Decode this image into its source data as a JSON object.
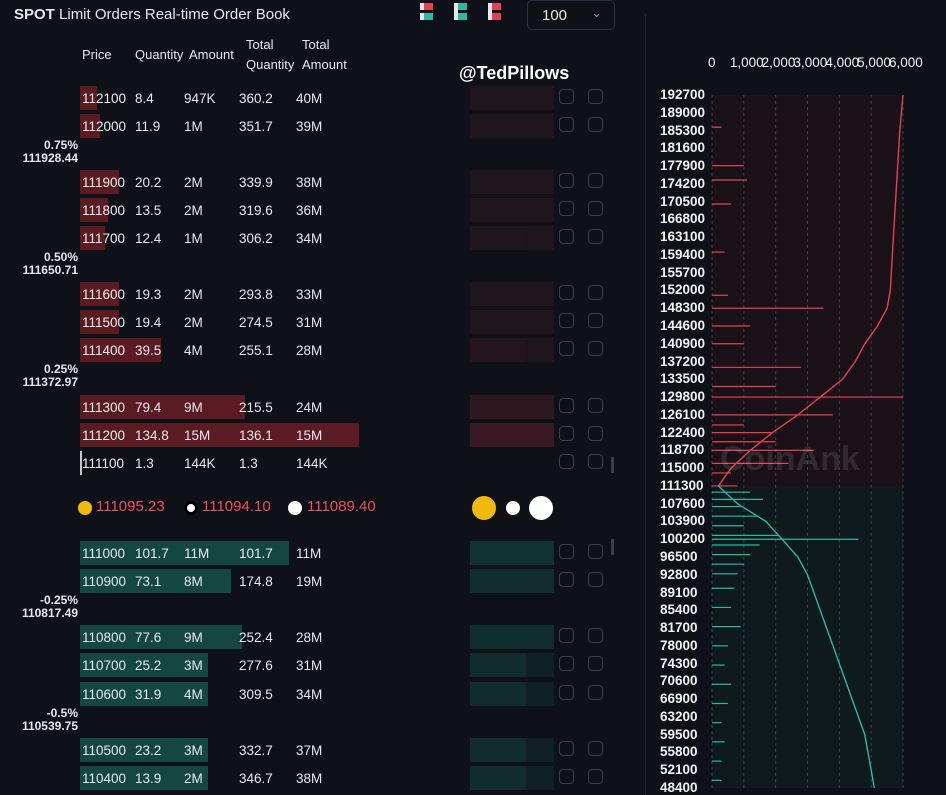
{
  "header": {
    "spot": "SPOT",
    "title": "Limit Orders Real-time Order Book",
    "view_icons": [
      "mixed-view-icon",
      "bids-view-icon",
      "asks-view-icon"
    ],
    "depth_select": "100",
    "columns": {
      "price": "Price",
      "quantity": "Quantity",
      "amount": "Amount",
      "total_qty_1": "Total",
      "total_qty_2": "Quantity",
      "total_amt_1": "Total",
      "total_amt_2": "Amount"
    }
  },
  "watermark": "@TedPillows",
  "chart_watermark": "CoinAnk",
  "colors": {
    "ask": "#5a1c22",
    "bid": "#14483f",
    "ask_line": "#e0454f",
    "bid_line": "#2fb7a2",
    "mid": "#ef4d5a"
  },
  "asks": [
    {
      "price": "112100",
      "qty": "8.4",
      "amount": "947K",
      "total_qty": "360.2",
      "total_amt": "40M",
      "depth": 0.06
    },
    {
      "price": "112000",
      "qty": "11.9",
      "amount": "1M",
      "total_qty": "351.7",
      "total_amt": "39M",
      "depth": 0.07
    },
    {
      "price": "111900",
      "qty": "20.2",
      "amount": "2M",
      "total_qty": "339.9",
      "total_amt": "38M",
      "depth": 0.14
    },
    {
      "price": "111800",
      "qty": "13.5",
      "amount": "2M",
      "total_qty": "319.6",
      "total_amt": "36M",
      "depth": 0.1
    },
    {
      "price": "111700",
      "qty": "12.4",
      "amount": "1M",
      "total_qty": "306.2",
      "total_amt": "34M",
      "depth": 0.09
    },
    {
      "price": "111600",
      "qty": "19.3",
      "amount": "2M",
      "total_qty": "293.8",
      "total_amt": "33M",
      "depth": 0.14
    },
    {
      "price": "111500",
      "qty": "19.4",
      "amount": "2M",
      "total_qty": "274.5",
      "total_amt": "31M",
      "depth": 0.14
    },
    {
      "price": "111400",
      "qty": "39.5",
      "amount": "4M",
      "total_qty": "255.1",
      "total_amt": "28M",
      "depth": 0.29
    },
    {
      "price": "111300",
      "qty": "79.4",
      "amount": "9M",
      "total_qty": "215.5",
      "total_amt": "24M",
      "depth": 0.59
    },
    {
      "price": "111200",
      "qty": "134.8",
      "amount": "15M",
      "total_qty": "136.1",
      "total_amt": "15M",
      "depth": 1.0
    },
    {
      "price": "111100",
      "qty": "1.3",
      "amount": "144K",
      "total_qty": "1.3",
      "total_amt": "144K",
      "depth": 0.0
    }
  ],
  "ask_separators": [
    {
      "pct": "0.75%",
      "price": "111928.44"
    },
    {
      "pct": "0.50%",
      "price": "111650.71"
    },
    {
      "pct": "0.25%",
      "price": "111372.97"
    }
  ],
  "mid_prices": [
    {
      "exchange_icon": "binance-icon",
      "value": "111095.23"
    },
    {
      "exchange_icon": "okx-icon",
      "value": "111094.10"
    },
    {
      "exchange_icon": "bybit-icon",
      "value": "111089.40"
    }
  ],
  "bids": [
    {
      "price": "111000",
      "qty": "101.7",
      "amount": "11M",
      "total_qty": "101.7",
      "total_amt": "11M",
      "depth": 0.75
    },
    {
      "price": "110900",
      "qty": "73.1",
      "amount": "8M",
      "total_qty": "174.8",
      "total_amt": "19M",
      "depth": 0.54
    },
    {
      "price": "110800",
      "qty": "77.6",
      "amount": "9M",
      "total_qty": "252.4",
      "total_amt": "28M",
      "depth": 0.58
    },
    {
      "price": "110700",
      "qty": "25.2",
      "amount": "3M",
      "total_qty": "277.6",
      "total_amt": "31M",
      "depth": 0.46
    },
    {
      "price": "110600",
      "qty": "31.9",
      "amount": "4M",
      "total_qty": "309.5",
      "total_amt": "34M",
      "depth": 0.46
    },
    {
      "price": "110500",
      "qty": "23.2",
      "amount": "3M",
      "total_qty": "332.7",
      "total_amt": "37M",
      "depth": 0.46
    },
    {
      "price": "110400",
      "qty": "13.9",
      "amount": "2M",
      "total_qty": "346.7",
      "total_amt": "38M",
      "depth": 0.46
    }
  ],
  "bid_separators": [
    {
      "pct": "-0.25%",
      "price": "110817.49"
    },
    {
      "pct": "-0.5%",
      "price": "110539.75"
    }
  ],
  "chart_data": {
    "type": "bar",
    "orientation": "horizontal",
    "x_ticks": [
      "0",
      "1,000",
      "2,000",
      "3,000",
      "4,000",
      "5,000",
      "6,000"
    ],
    "xlim": [
      0,
      6000
    ],
    "y_ticks": [
      "192700",
      "189000",
      "185300",
      "181600",
      "177900",
      "174200",
      "170500",
      "166800",
      "163100",
      "159400",
      "155700",
      "152000",
      "148300",
      "144600",
      "140900",
      "137200",
      "133500",
      "129800",
      "126100",
      "122400",
      "118700",
      "115000",
      "111300",
      "107600",
      "103900",
      "100200",
      "96500",
      "92800",
      "89100",
      "85400",
      "81700",
      "78000",
      "74300",
      "70600",
      "66900",
      "63200",
      "59500",
      "55800",
      "52100",
      "48400"
    ],
    "ylim": [
      48400,
      192700
    ],
    "grid": true,
    "series": [
      {
        "name": "asks",
        "cumulative": [
          [
            111300,
            200
          ],
          [
            115000,
            600
          ],
          [
            118700,
            1200
          ],
          [
            122400,
            1900
          ],
          [
            126100,
            2700
          ],
          [
            129800,
            3400
          ],
          [
            133500,
            4100
          ],
          [
            137200,
            4500
          ],
          [
            140900,
            4800
          ],
          [
            144600,
            5200
          ],
          [
            148300,
            5500
          ],
          [
            152000,
            5600
          ],
          [
            163100,
            5700
          ],
          [
            174200,
            5800
          ],
          [
            185300,
            5900
          ],
          [
            192700,
            6000
          ]
        ],
        "spikes": [
          [
            111300,
            800
          ],
          [
            114000,
            600
          ],
          [
            116000,
            2400
          ],
          [
            118700,
            3200
          ],
          [
            120500,
            2000
          ],
          [
            122400,
            1900
          ],
          [
            124000,
            1000
          ],
          [
            126100,
            3800
          ],
          [
            129800,
            6000
          ],
          [
            132000,
            2000
          ],
          [
            136000,
            2800
          ],
          [
            140900,
            1000
          ],
          [
            144600,
            1200
          ],
          [
            148300,
            3500
          ],
          [
            151000,
            500
          ],
          [
            160000,
            400
          ],
          [
            170000,
            600
          ],
          [
            175000,
            1100
          ],
          [
            178000,
            1000
          ],
          [
            186000,
            300
          ]
        ]
      },
      {
        "name": "bids",
        "cumulative": [
          [
            111300,
            200
          ],
          [
            107600,
            800
          ],
          [
            103900,
            1700
          ],
          [
            100200,
            2200
          ],
          [
            96500,
            2700
          ],
          [
            92800,
            3000
          ],
          [
            89100,
            3200
          ],
          [
            85400,
            3400
          ],
          [
            81700,
            3600
          ],
          [
            78000,
            3800
          ],
          [
            74300,
            4000
          ],
          [
            70600,
            4200
          ],
          [
            66900,
            4400
          ],
          [
            63200,
            4600
          ],
          [
            59500,
            4800
          ],
          [
            55800,
            4900
          ],
          [
            52100,
            5000
          ],
          [
            48400,
            5100
          ]
        ],
        "spikes": [
          [
            110000,
            1200
          ],
          [
            108500,
            1600
          ],
          [
            107000,
            900
          ],
          [
            105000,
            1400
          ],
          [
            103000,
            1000
          ],
          [
            101000,
            2100
          ],
          [
            100200,
            4600
          ],
          [
            99000,
            1500
          ],
          [
            97000,
            1200
          ],
          [
            95000,
            1000
          ],
          [
            93000,
            800
          ],
          [
            90000,
            700
          ],
          [
            86000,
            600
          ],
          [
            82000,
            900
          ],
          [
            78000,
            500
          ],
          [
            74000,
            400
          ],
          [
            70000,
            600
          ],
          [
            66000,
            500
          ],
          [
            62000,
            300
          ],
          [
            58000,
            400
          ],
          [
            54000,
            300
          ],
          [
            50000,
            300
          ]
        ]
      }
    ]
  }
}
